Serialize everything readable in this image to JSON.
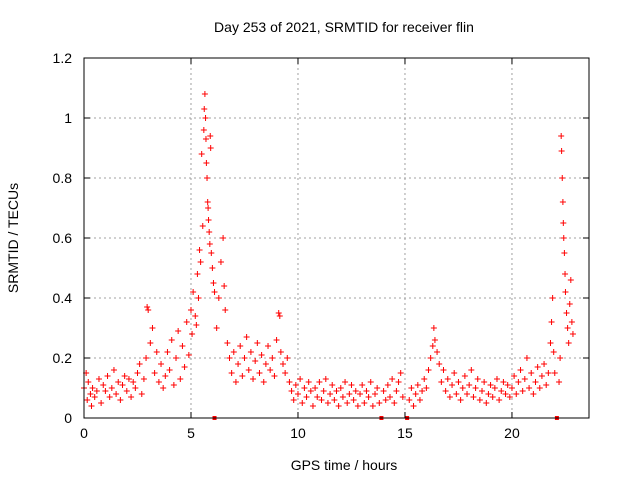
{
  "chart_data": {
    "type": "scatter",
    "title": "Day 253 of 2021, SRMTID for receiver flin",
    "xlabel": "GPS time / hours",
    "ylabel": "SRMTID / TECUs",
    "xlim": [
      0,
      23.6
    ],
    "ylim": [
      0,
      1.2
    ],
    "x_ticks": [
      0,
      5,
      10,
      15,
      20
    ],
    "x_tick_labels": [
      "0",
      "5",
      "10",
      "15",
      "20"
    ],
    "y_ticks": [
      0,
      0.2,
      0.4,
      0.6,
      0.8,
      1,
      1.2
    ],
    "y_tick_labels": [
      "0",
      "0.2",
      "0.4",
      "0.6",
      "0.8",
      "1",
      "1.2"
    ],
    "grid": true,
    "marker": "+",
    "series_color": "#ff0000",
    "gap_markers_x": [
      6.1,
      13.9,
      15.1,
      22.1
    ],
    "series": [
      {
        "name": "SRMTID",
        "points": [
          [
            0.0,
            0.1
          ],
          [
            0.1,
            0.15
          ],
          [
            0.15,
            0.06
          ],
          [
            0.2,
            0.12
          ],
          [
            0.3,
            0.08
          ],
          [
            0.35,
            0.04
          ],
          [
            0.4,
            0.1
          ],
          [
            0.5,
            0.07
          ],
          [
            0.6,
            0.09
          ],
          [
            0.7,
            0.13
          ],
          [
            0.8,
            0.05
          ],
          [
            0.9,
            0.11
          ],
          [
            1.0,
            0.09
          ],
          [
            1.1,
            0.14
          ],
          [
            1.2,
            0.07
          ],
          [
            1.3,
            0.1
          ],
          [
            1.4,
            0.16
          ],
          [
            1.5,
            0.08
          ],
          [
            1.6,
            0.12
          ],
          [
            1.7,
            0.06
          ],
          [
            1.8,
            0.11
          ],
          [
            1.9,
            0.14
          ],
          [
            2.0,
            0.09
          ],
          [
            2.1,
            0.13
          ],
          [
            2.2,
            0.07
          ],
          [
            2.3,
            0.12
          ],
          [
            2.4,
            0.1
          ],
          [
            2.5,
            0.15
          ],
          [
            2.6,
            0.18
          ],
          [
            2.7,
            0.08
          ],
          [
            2.8,
            0.13
          ],
          [
            2.9,
            0.2
          ],
          [
            2.95,
            0.37
          ],
          [
            3.0,
            0.36
          ],
          [
            3.1,
            0.25
          ],
          [
            3.2,
            0.3
          ],
          [
            3.3,
            0.15
          ],
          [
            3.4,
            0.22
          ],
          [
            3.5,
            0.12
          ],
          [
            3.6,
            0.18
          ],
          [
            3.7,
            0.1
          ],
          [
            3.8,
            0.14
          ],
          [
            3.9,
            0.22
          ],
          [
            4.0,
            0.16
          ],
          [
            4.1,
            0.26
          ],
          [
            4.2,
            0.11
          ],
          [
            4.3,
            0.2
          ],
          [
            4.4,
            0.29
          ],
          [
            4.5,
            0.13
          ],
          [
            4.6,
            0.24
          ],
          [
            4.7,
            0.17
          ],
          [
            4.8,
            0.32
          ],
          [
            4.9,
            0.21
          ],
          [
            5.0,
            0.36
          ],
          [
            5.05,
            0.28
          ],
          [
            5.1,
            0.42
          ],
          [
            5.2,
            0.34
          ],
          [
            5.25,
            0.31
          ],
          [
            5.3,
            0.48
          ],
          [
            5.35,
            0.4
          ],
          [
            5.4,
            0.56
          ],
          [
            5.45,
            0.52
          ],
          [
            5.5,
            0.88
          ],
          [
            5.55,
            0.64
          ],
          [
            5.6,
            0.96
          ],
          [
            5.62,
            1.03
          ],
          [
            5.65,
            1.08
          ],
          [
            5.68,
            1.0
          ],
          [
            5.7,
            0.93
          ],
          [
            5.72,
            0.85
          ],
          [
            5.75,
            0.8
          ],
          [
            5.78,
            0.72
          ],
          [
            5.8,
            0.7
          ],
          [
            5.82,
            0.66
          ],
          [
            5.85,
            0.62
          ],
          [
            5.88,
            0.58
          ],
          [
            5.9,
            0.94
          ],
          [
            5.92,
            0.9
          ],
          [
            5.95,
            0.55
          ],
          [
            6.0,
            0.5
          ],
          [
            6.05,
            0.45
          ],
          [
            6.1,
            0.42
          ],
          [
            6.2,
            0.3
          ],
          [
            6.3,
            0.4
          ],
          [
            6.4,
            0.52
          ],
          [
            6.5,
            0.6
          ],
          [
            6.55,
            0.44
          ],
          [
            6.6,
            0.36
          ],
          [
            6.7,
            0.25
          ],
          [
            6.8,
            0.2
          ],
          [
            6.9,
            0.15
          ],
          [
            7.0,
            0.22
          ],
          [
            7.1,
            0.12
          ],
          [
            7.2,
            0.18
          ],
          [
            7.3,
            0.24
          ],
          [
            7.4,
            0.14
          ],
          [
            7.5,
            0.2
          ],
          [
            7.6,
            0.27
          ],
          [
            7.7,
            0.16
          ],
          [
            7.8,
            0.22
          ],
          [
            7.9,
            0.13
          ],
          [
            8.0,
            0.19
          ],
          [
            8.1,
            0.25
          ],
          [
            8.2,
            0.15
          ],
          [
            8.3,
            0.21
          ],
          [
            8.4,
            0.12
          ],
          [
            8.5,
            0.18
          ],
          [
            8.6,
            0.24
          ],
          [
            8.7,
            0.16
          ],
          [
            8.8,
            0.2
          ],
          [
            8.9,
            0.14
          ],
          [
            9.0,
            0.26
          ],
          [
            9.1,
            0.35
          ],
          [
            9.15,
            0.34
          ],
          [
            9.2,
            0.22
          ],
          [
            9.3,
            0.18
          ],
          [
            9.4,
            0.15
          ],
          [
            9.5,
            0.2
          ],
          [
            9.6,
            0.12
          ],
          [
            9.7,
            0.09
          ],
          [
            9.8,
            0.06
          ],
          [
            9.9,
            0.11
          ],
          [
            10.0,
            0.08
          ],
          [
            10.1,
            0.13
          ],
          [
            10.2,
            0.05
          ],
          [
            10.3,
            0.1
          ],
          [
            10.4,
            0.07
          ],
          [
            10.5,
            0.12
          ],
          [
            10.6,
            0.09
          ],
          [
            10.7,
            0.04
          ],
          [
            10.8,
            0.1
          ],
          [
            10.9,
            0.07
          ],
          [
            11.0,
            0.12
          ],
          [
            11.1,
            0.06
          ],
          [
            11.2,
            0.09
          ],
          [
            11.3,
            0.13
          ],
          [
            11.4,
            0.05
          ],
          [
            11.5,
            0.08
          ],
          [
            11.6,
            0.11
          ],
          [
            11.7,
            0.06
          ],
          [
            11.8,
            0.09
          ],
          [
            11.9,
            0.04
          ],
          [
            12.0,
            0.1
          ],
          [
            12.1,
            0.07
          ],
          [
            12.2,
            0.12
          ],
          [
            12.3,
            0.05
          ],
          [
            12.4,
            0.08
          ],
          [
            12.5,
            0.11
          ],
          [
            12.6,
            0.06
          ],
          [
            12.7,
            0.09
          ],
          [
            12.8,
            0.04
          ],
          [
            12.9,
            0.08
          ],
          [
            13.0,
            0.11
          ],
          [
            13.1,
            0.05
          ],
          [
            13.2,
            0.09
          ],
          [
            13.3,
            0.07
          ],
          [
            13.4,
            0.12
          ],
          [
            13.5,
            0.04
          ],
          [
            13.6,
            0.08
          ],
          [
            13.7,
            0.1
          ],
          [
            13.8,
            0.05
          ],
          [
            14.0,
            0.09
          ],
          [
            14.1,
            0.06
          ],
          [
            14.2,
            0.11
          ],
          [
            14.3,
            0.07
          ],
          [
            14.4,
            0.13
          ],
          [
            14.5,
            0.05
          ],
          [
            14.6,
            0.09
          ],
          [
            14.7,
            0.12
          ],
          [
            14.8,
            0.15
          ],
          [
            14.9,
            0.07
          ],
          [
            15.2,
            0.06
          ],
          [
            15.3,
            0.1
          ],
          [
            15.4,
            0.04
          ],
          [
            15.5,
            0.08
          ],
          [
            15.6,
            0.11
          ],
          [
            15.7,
            0.06
          ],
          [
            15.8,
            0.09
          ],
          [
            15.9,
            0.13
          ],
          [
            16.0,
            0.1
          ],
          [
            16.1,
            0.16
          ],
          [
            16.2,
            0.2
          ],
          [
            16.3,
            0.24
          ],
          [
            16.35,
            0.3
          ],
          [
            16.4,
            0.26
          ],
          [
            16.5,
            0.22
          ],
          [
            16.6,
            0.18
          ],
          [
            16.7,
            0.12
          ],
          [
            16.8,
            0.16
          ],
          [
            16.9,
            0.09
          ],
          [
            17.0,
            0.13
          ],
          [
            17.1,
            0.07
          ],
          [
            17.2,
            0.11
          ],
          [
            17.3,
            0.15
          ],
          [
            17.4,
            0.08
          ],
          [
            17.5,
            0.12
          ],
          [
            17.6,
            0.06
          ],
          [
            17.7,
            0.1
          ],
          [
            17.8,
            0.14
          ],
          [
            17.9,
            0.08
          ],
          [
            18.0,
            0.11
          ],
          [
            18.1,
            0.16
          ],
          [
            18.2,
            0.07
          ],
          [
            18.3,
            0.1
          ],
          [
            18.4,
            0.13
          ],
          [
            18.5,
            0.06
          ],
          [
            18.6,
            0.09
          ],
          [
            18.7,
            0.12
          ],
          [
            18.8,
            0.05
          ],
          [
            18.9,
            0.08
          ],
          [
            19.0,
            0.11
          ],
          [
            19.1,
            0.07
          ],
          [
            19.2,
            0.1
          ],
          [
            19.3,
            0.13
          ],
          [
            19.4,
            0.06
          ],
          [
            19.5,
            0.09
          ],
          [
            19.6,
            0.12
          ],
          [
            19.7,
            0.08
          ],
          [
            19.8,
            0.11
          ],
          [
            19.9,
            0.07
          ],
          [
            20.0,
            0.1
          ],
          [
            20.1,
            0.14
          ],
          [
            20.2,
            0.08
          ],
          [
            20.3,
            0.12
          ],
          [
            20.4,
            0.16
          ],
          [
            20.5,
            0.09
          ],
          [
            20.6,
            0.13
          ],
          [
            20.7,
            0.2
          ],
          [
            20.8,
            0.1
          ],
          [
            20.9,
            0.15
          ],
          [
            21.0,
            0.08
          ],
          [
            21.1,
            0.12
          ],
          [
            21.2,
            0.17
          ],
          [
            21.3,
            0.1
          ],
          [
            21.4,
            0.14
          ],
          [
            21.5,
            0.18
          ],
          [
            21.6,
            0.11
          ],
          [
            21.7,
            0.15
          ],
          [
            21.8,
            0.25
          ],
          [
            21.85,
            0.32
          ],
          [
            21.9,
            0.4
          ],
          [
            21.95,
            0.22
          ],
          [
            22.0,
            0.15
          ],
          [
            22.2,
            0.12
          ],
          [
            22.25,
            0.2
          ],
          [
            22.3,
            0.94
          ],
          [
            22.32,
            0.89
          ],
          [
            22.35,
            0.8
          ],
          [
            22.38,
            0.72
          ],
          [
            22.4,
            0.65
          ],
          [
            22.42,
            0.6
          ],
          [
            22.45,
            0.55
          ],
          [
            22.48,
            0.48
          ],
          [
            22.5,
            0.42
          ],
          [
            22.55,
            0.35
          ],
          [
            22.6,
            0.3
          ],
          [
            22.65,
            0.25
          ],
          [
            22.7,
            0.38
          ],
          [
            22.75,
            0.46
          ],
          [
            22.8,
            0.32
          ],
          [
            22.85,
            0.28
          ]
        ]
      }
    ]
  }
}
